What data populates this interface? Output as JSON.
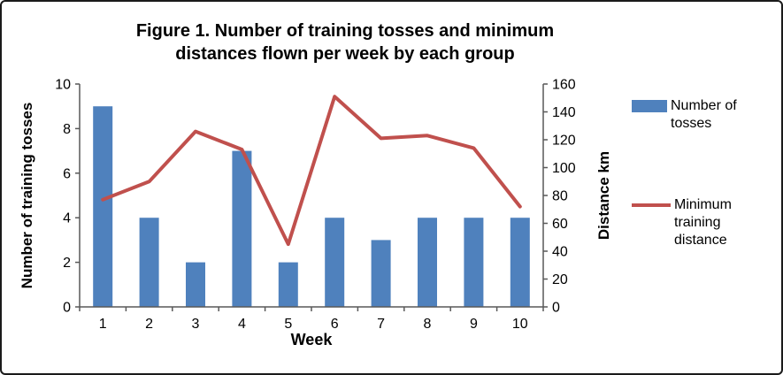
{
  "figure": {
    "border_color": "#1a1a1a",
    "background": "#ffffff"
  },
  "chart_data": {
    "type": "combo-bar-line",
    "title": "Figure 1. Number of training tosses and minimum distances flown per week by each group",
    "xlabel": "Week",
    "ylabel_left": "Number of training tosses",
    "ylabel_right": "Distance km",
    "categories": [
      "1",
      "2",
      "3",
      "4",
      "5",
      "6",
      "7",
      "8",
      "9",
      "10"
    ],
    "series": [
      {
        "name": "Number of tosses",
        "type": "bar",
        "axis": "left",
        "color": "#4F81BD",
        "values": [
          9,
          4,
          2,
          7,
          2,
          4,
          3,
          4,
          4,
          4
        ]
      },
      {
        "name": "Minimum training distance",
        "type": "line",
        "axis": "right",
        "color": "#C0504D",
        "values": [
          77,
          90,
          126,
          113,
          45,
          151,
          121,
          123,
          114,
          72
        ]
      }
    ],
    "ylim_left": [
      0,
      10
    ],
    "yticks_left": [
      0,
      2,
      4,
      6,
      8,
      10
    ],
    "ylim_right": [
      0,
      160
    ],
    "yticks_right": [
      0,
      20,
      40,
      60,
      80,
      100,
      120,
      140,
      160
    ],
    "grid": false,
    "legend_position": "right",
    "axis_color": "#595959"
  }
}
